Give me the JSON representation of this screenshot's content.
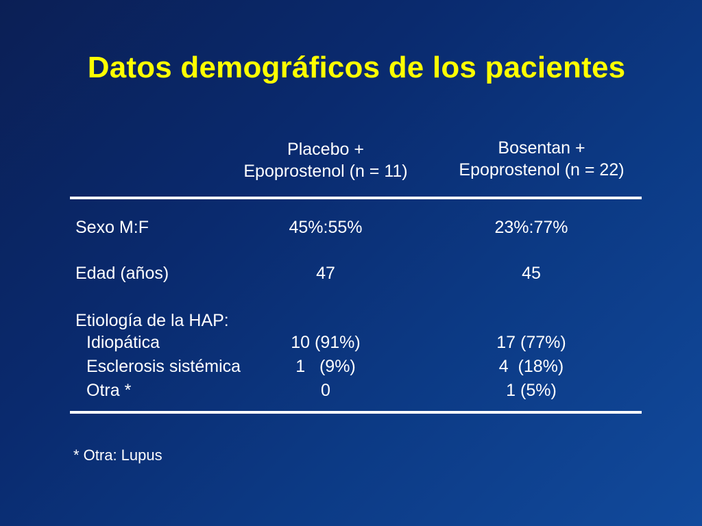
{
  "title": "Datos demográficos de los pacientes",
  "columns": {
    "placebo": {
      "line1": "Placebo +",
      "line2": "Epoprostenol (n = 11)"
    },
    "bosentan": {
      "line1": "Bosentan +",
      "line2": "Epoprostenol (n = 22)"
    }
  },
  "rows": {
    "sexo": {
      "label": "Sexo M:F",
      "placebo": "45%:55%",
      "bosentan": "23%:77%"
    },
    "edad": {
      "label": "Edad (años)",
      "placebo": "47",
      "bosentan": "45"
    },
    "etiologia": {
      "label": "Etiología de la HAP:"
    },
    "idiopatica": {
      "label": "Idiopática",
      "placebo": "10 (91%)",
      "bosentan": "17 (77%)"
    },
    "esclerosis": {
      "label": "Esclerosis sistémica",
      "placebo": "1   (9%)",
      "bosentan": "4  (18%)"
    },
    "otra": {
      "label": "Otra *",
      "placebo": "0",
      "bosentan": "1 (5%)"
    }
  },
  "footnote": "* Otra:  Lupus"
}
